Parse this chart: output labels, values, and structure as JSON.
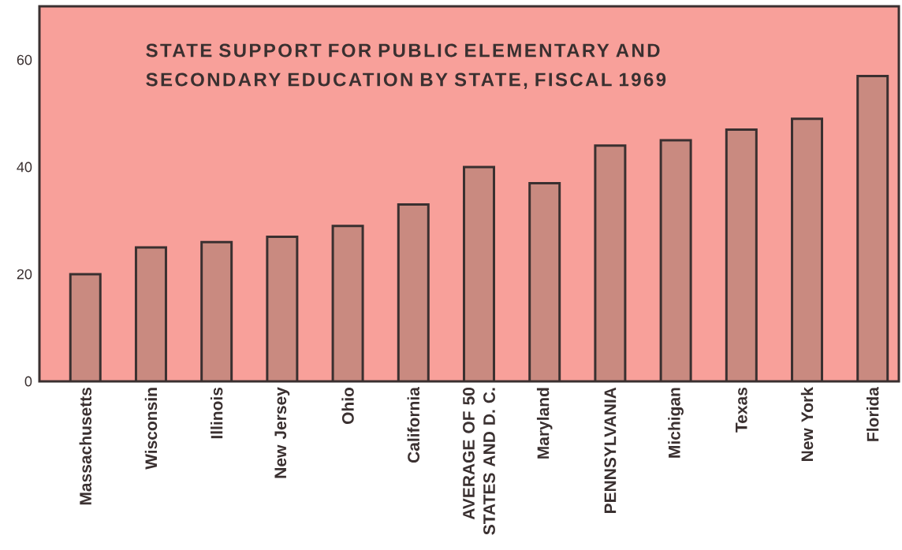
{
  "chart_data": {
    "type": "bar",
    "title": "STATE SUPPORT FOR PUBLIC ELEMENTARY AND SECONDARY EDUCATION BY STATE, FISCAL 1969",
    "categories": [
      "Massachusetts",
      "Wisconsin",
      "Illinois",
      "New Jersey",
      "Ohio",
      "California",
      "AVERAGE OF 50 STATES AND D. C.",
      "Maryland",
      "PENNSYLVANIA",
      "Michigan",
      "Texas",
      "New York",
      "Florida"
    ],
    "values": [
      20,
      25,
      26,
      27,
      29,
      33,
      40,
      37,
      44,
      45,
      47,
      49,
      57
    ],
    "color": "#c98a80",
    "ylim": [
      0,
      70
    ],
    "yticks": [
      0,
      20,
      40,
      60
    ],
    "grid": false
  }
}
